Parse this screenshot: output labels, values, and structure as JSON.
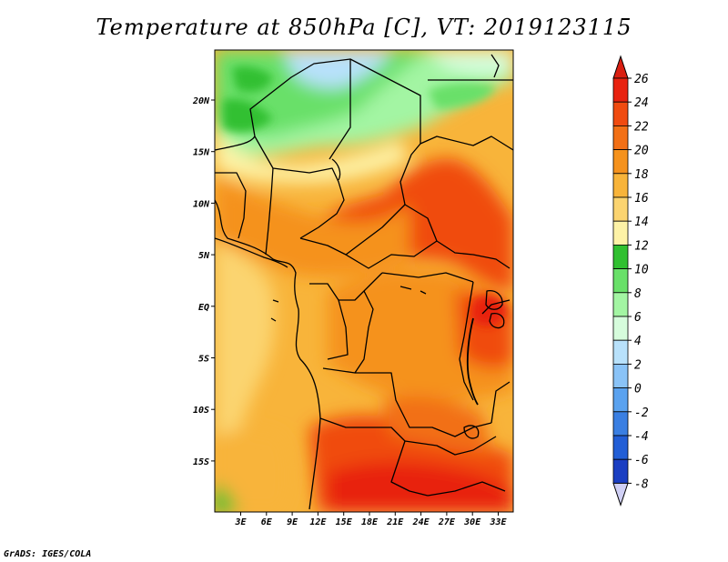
{
  "title": "Temperature at 850hPa [C], VT: 2019123115",
  "credit": "GrADS: IGES/COLA",
  "map": {
    "lon_labels": [
      "3E",
      "6E",
      "9E",
      "12E",
      "15E",
      "18E",
      "21E",
      "24E",
      "27E",
      "30E",
      "33E"
    ],
    "lat_labels": [
      "20N",
      "15N",
      "10N",
      "5N",
      "EQ",
      "5S",
      "10S",
      "15S"
    ],
    "colors": {
      "frame": "#000000",
      "coast": "#000000"
    }
  },
  "colorbar": {
    "labels": [
      "26",
      "24",
      "22",
      "20",
      "18",
      "16",
      "14",
      "12",
      "10",
      "8",
      "6",
      "4",
      "2",
      "0",
      "-2",
      "-4",
      "-6",
      "-8"
    ],
    "colors": [
      "#e8220f",
      "#f04b10",
      "#f27016",
      "#f5921d",
      "#f8b43a",
      "#fbd470",
      "#fdf2a6",
      "#30c030",
      "#69e069",
      "#a3f5a3",
      "#d6fcdc",
      "#b8e1fb",
      "#8ac3f7",
      "#5aa2ef",
      "#3a7fe2",
      "#225ed6",
      "#1a3ec2",
      "#121a8a"
    ],
    "over_color": "#d91f11",
    "under_color": "#d0d0f5"
  }
}
